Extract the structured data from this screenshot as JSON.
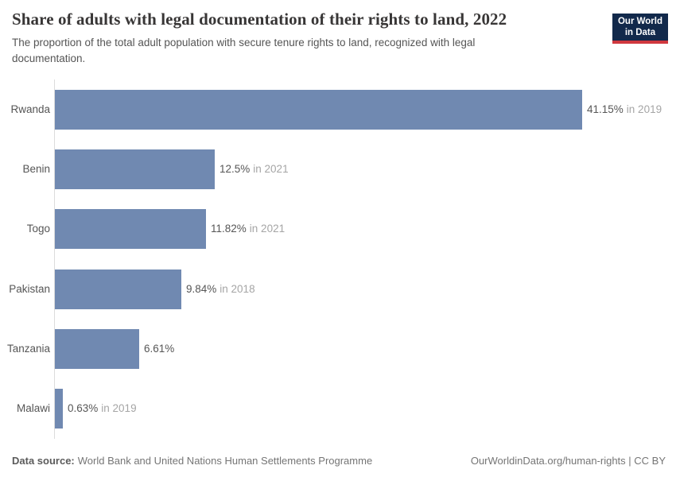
{
  "header": {
    "title": "Share of adults with legal documentation of their rights to land, 2022",
    "subtitle": "The proportion of the total adult population with secure tenure rights to land, recognized with legal documentation.",
    "logo": {
      "line1": "Our World",
      "line2": "in Data"
    }
  },
  "chart_data": {
    "type": "bar",
    "orientation": "horizontal",
    "title": "Share of adults with legal documentation of their rights to land, 2022",
    "categories": [
      "Rwanda",
      "Benin",
      "Togo",
      "Pakistan",
      "Tanzania",
      "Malawi"
    ],
    "values": [
      41.15,
      12.5,
      11.82,
      9.84,
      6.61,
      0.63
    ],
    "value_labels": [
      "41.15%",
      "12.5%",
      "11.82%",
      "9.84%",
      "6.61%",
      "0.63%"
    ],
    "year_notes": [
      "in 2019",
      "in 2021",
      "in 2021",
      "in 2018",
      "",
      "in 2019"
    ],
    "xlabel": "",
    "ylabel": "",
    "xlim": [
      0,
      41.15
    ],
    "grid": false,
    "legend": false,
    "bar_color": "#7089b1",
    "value_color": "#565656",
    "year_color": "#a5a5a5",
    "category_label_color": "#555555",
    "axis_line_color": "#dcdcdc"
  },
  "footer": {
    "datasource_label": "Data source:",
    "datasource_value": "World Bank and United Nations Human Settlements Programme",
    "credit": "OurWorldinData.org/human-rights | CC BY"
  }
}
